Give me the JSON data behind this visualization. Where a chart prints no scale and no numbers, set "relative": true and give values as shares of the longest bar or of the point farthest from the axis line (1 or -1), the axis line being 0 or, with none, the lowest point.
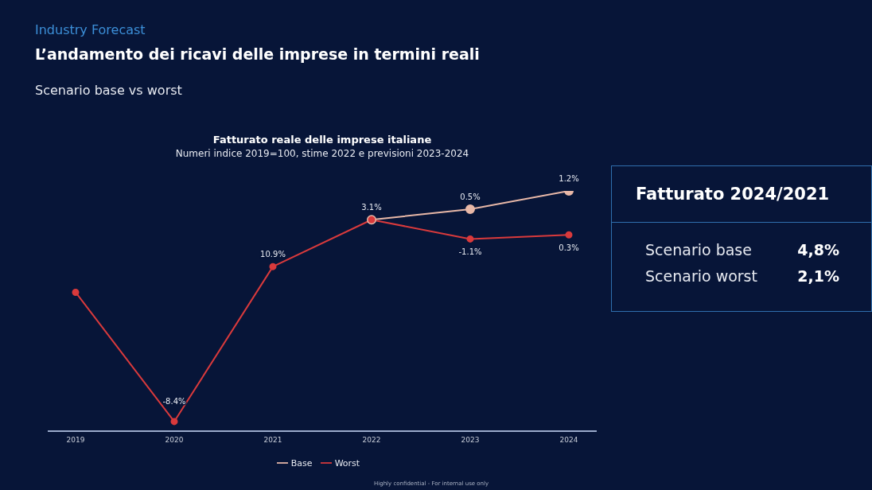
{
  "chart_data": [
    {
      "type": "line",
      "title": "Fatturato reale delle imprese italiane",
      "subtitle": "Numeri indice 2019=100, stime 2022 e previsioni 2023-2024",
      "categories": [
        "2019",
        "2020",
        "2021",
        "2022",
        "2023",
        "2024"
      ],
      "relative": true,
      "marker": "circle",
      "legend": "bottom",
      "series": [
        {
          "name": "Base",
          "color": "#e8b8a8",
          "values": [
            null,
            null,
            null,
            0.88,
            0.924,
            1
          ]
        },
        {
          "name": "Worst",
          "color": "#d93a3c",
          "values": [
            0.578,
            0.04,
            0.685,
            0.88,
            0.8,
            0.817
          ]
        }
      ],
      "annotations": [
        "Industry Forecast",
        "L’andamento dei ricavi delle imprese in termini reali",
        "Scenario base vs worst",
        "Highly confidential - For internal use only",
        {
          "text": "-8.4%",
          "x": "2020",
          "y": 0.04
        },
        {
          "text": "10.9%",
          "x": "2021",
          "y": 0.685
        },
        {
          "text": "3.1%",
          "x": "2022",
          "y": 0.88
        },
        {
          "text": "0.5%",
          "x": "2023",
          "y": 0.924
        },
        {
          "text": "-1.1%",
          "x": "2023",
          "y": 0.8
        },
        {
          "text": "1.2%",
          "x": "2024",
          "y": 1
        },
        {
          "text": "0.3%",
          "x": "2024",
          "y": 0.817
        }
      ]
    },
    {
      "type": "other",
      "title": "Fatturato 2024/2021",
      "annotations": [
        "Scenario base",
        "4,8%",
        "Scenario worst",
        "2,1%"
      ]
    }
  ]
}
